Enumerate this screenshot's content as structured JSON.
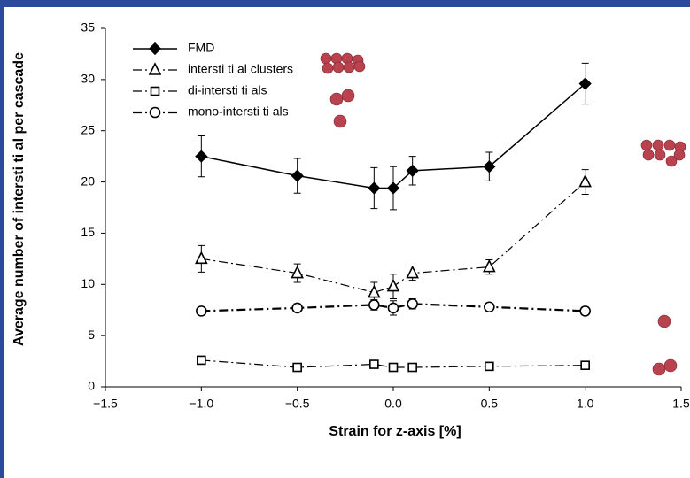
{
  "chart_data": {
    "type": "line",
    "xlabel": "Strain for z-axis [%]",
    "ylabel": "Average number of intersti ti al per cascade",
    "x": [
      -1.0,
      -0.5,
      -0.1,
      0.0,
      0.1,
      0.5,
      1.0
    ],
    "series": [
      {
        "name": "FMD",
        "color": "#000000",
        "marker": "diamond",
        "linestyle": "solid",
        "values": [
          22.5,
          20.6,
          19.4,
          19.4,
          21.1,
          21.5,
          29.6
        ],
        "errors": [
          2.0,
          1.7,
          2.0,
          2.1,
          1.4,
          1.4,
          2.0
        ]
      },
      {
        "name": "intersti ti al clusters",
        "color": "#000000",
        "marker": "triangle",
        "linestyle": "dashdot",
        "values": [
          12.5,
          11.1,
          9.2,
          9.8,
          11.1,
          11.7,
          20.0
        ],
        "errors": [
          1.3,
          0.9,
          1.0,
          1.2,
          0.7,
          0.7,
          1.2
        ]
      },
      {
        "name": "di-intersti ti als",
        "color": "#000000",
        "marker": "square",
        "linestyle": "dashdot",
        "values": [
          2.6,
          1.9,
          2.2,
          1.9,
          1.9,
          2.0,
          2.1
        ]
      },
      {
        "name": "mono-intersti ti als",
        "color": "#000000",
        "marker": "circle",
        "linestyle": "dashdotbold",
        "values": [
          7.4,
          7.7,
          8.0,
          7.7,
          8.1,
          7.8,
          7.4
        ],
        "errors": [
          0.4,
          0.4,
          0.5,
          0.7,
          0.5,
          0.3,
          0.4
        ]
      }
    ],
    "xlim": [
      -1.5,
      1.5
    ],
    "xticks": [
      {
        "value": -1.5,
        "label": "−1.5"
      },
      {
        "value": -1.0,
        "label": "−1.0"
      },
      {
        "value": -0.5,
        "label": "−0.5"
      },
      {
        "value": 0,
        "label": "0.0"
      },
      0.5,
      {
        "value": 1,
        "label": "1.0"
      },
      {
        "value": 1.5,
        "label": "1.5"
      }
    ],
    "ylim": [
      0,
      35
    ],
    "yticks": [
      0,
      5,
      10,
      15,
      20,
      25,
      30,
      35
    ],
    "grid": false
  }
}
